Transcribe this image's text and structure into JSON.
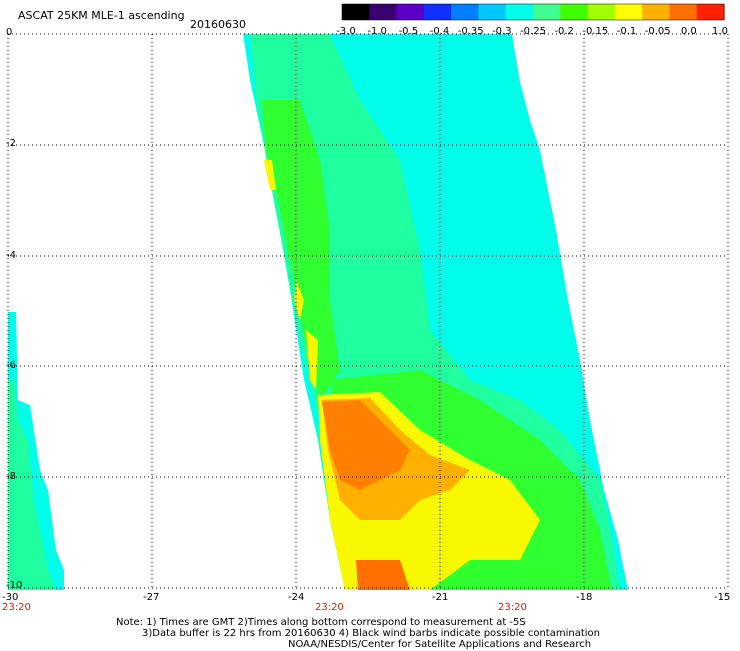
{
  "header": {
    "product": "ASCAT 25KM MLE-1 ascending",
    "date": "20160630"
  },
  "colorbar": {
    "labels": [
      "-3.0",
      "-1.0",
      "-0.5",
      "-0.4",
      "-0.35",
      "-0.3",
      "-0.25",
      "-0.2",
      "-0.15",
      "-0.1",
      "-0.05",
      "0.0",
      "1.0"
    ],
    "colors": [
      "#000000",
      "#3a0070",
      "#5a00c8",
      "#1030ff",
      "#0080ff",
      "#00c8ff",
      "#00ffe8",
      "#40ff90",
      "#40ff00",
      "#a0ff00",
      "#ffff00",
      "#ffb000",
      "#ff7000",
      "#ff2000"
    ]
  },
  "axes": {
    "x_ticks": [
      "-30",
      "-27",
      "-24",
      "-21",
      "-18",
      "-15"
    ],
    "y_ticks": [
      "0",
      "-2",
      "-4",
      "-6",
      "-8",
      "-10"
    ],
    "time_labels": [
      "23:20",
      "23:20",
      "23:20"
    ]
  },
  "notes": {
    "line1": "Note: 1) Times are GMT 2)Times along bottom correspond to measurement at -5S",
    "line2": "3)Data buffer is 22 hrs from 20160630 4) Black wind barbs indicate possible contamination",
    "line3": "NOAA/NESDIS/Center for Satellite Applications and Research"
  },
  "palette": {
    "cyan": "#00ffea",
    "green_cyan": "#20ffa0",
    "green": "#30ff30",
    "yellow": "#f8f800",
    "orange_light": "#ffb000",
    "orange": "#ff8000",
    "orange_dark": "#ff7000"
  }
}
